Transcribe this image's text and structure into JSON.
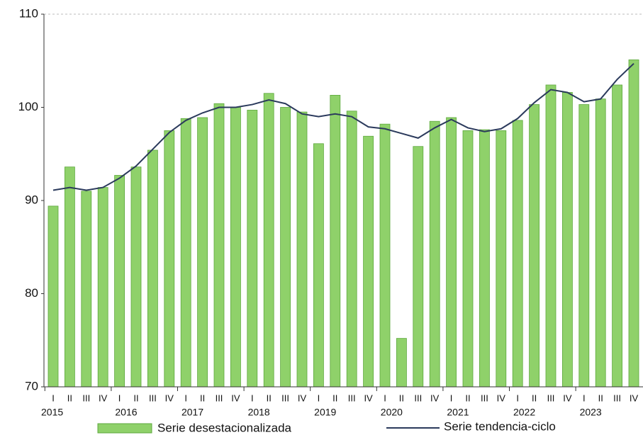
{
  "chart_data": {
    "type": "bar_line",
    "categories": [
      "I",
      "II",
      "III",
      "IV",
      "I",
      "II",
      "III",
      "IV",
      "I",
      "II",
      "III",
      "IV",
      "I",
      "II",
      "III",
      "IV",
      "I",
      "II",
      "III",
      "IV",
      "I",
      "II",
      "III",
      "IV",
      "I",
      "II",
      "III",
      "IV",
      "I",
      "II",
      "III",
      "IV",
      "I",
      "II",
      "III",
      "IV"
    ],
    "years": [
      "2015",
      "2016",
      "2017",
      "2018",
      "2019",
      "2020",
      "2021",
      "2022",
      "2023"
    ],
    "series": [
      {
        "name": "Serie desestacionalizada",
        "type": "bar",
        "color": "#8fd16a",
        "values": [
          89.4,
          93.6,
          91.0,
          91.4,
          92.7,
          93.6,
          95.4,
          97.5,
          98.8,
          98.9,
          100.4,
          100.0,
          99.7,
          101.5,
          100.0,
          99.5,
          96.1,
          101.3,
          99.6,
          96.9,
          98.2,
          75.2,
          95.8,
          98.5,
          98.9,
          97.5,
          97.6,
          97.5,
          98.6,
          100.3,
          102.4,
          101.6,
          100.3,
          100.9,
          102.4,
          105.1
        ]
      },
      {
        "name": "Serie tendencia-ciclo",
        "type": "line",
        "color": "#2b3a5c",
        "values": [
          91.1,
          91.4,
          91.1,
          91.4,
          92.4,
          93.7,
          95.5,
          97.3,
          98.6,
          99.4,
          100.0,
          100.0,
          100.3,
          100.8,
          100.4,
          99.3,
          99.0,
          99.3,
          99.0,
          97.9,
          97.7,
          97.2,
          96.7,
          97.8,
          98.7,
          97.8,
          97.4,
          97.7,
          98.8,
          100.5,
          101.9,
          101.6,
          100.6,
          100.9,
          103.0,
          104.7
        ]
      }
    ],
    "ylim": [
      70,
      110
    ],
    "yticks": [
      70,
      80,
      90,
      100,
      110
    ],
    "grid": false
  }
}
